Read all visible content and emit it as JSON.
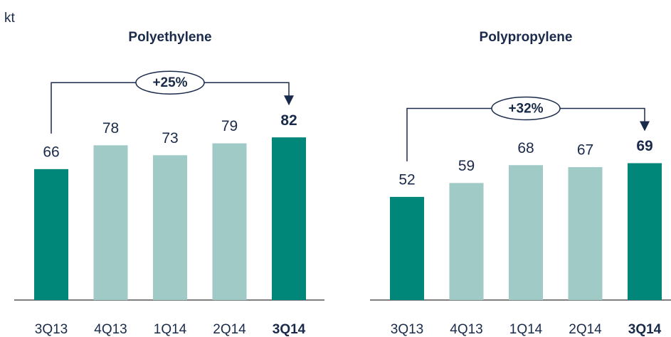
{
  "unit": "kt",
  "chart_data": [
    {
      "type": "bar",
      "title": "Polyethylene",
      "categories": [
        "3Q13",
        "4Q13",
        "1Q14",
        "2Q14",
        "3Q14"
      ],
      "values": [
        66,
        78,
        73,
        79,
        82
      ],
      "colors": [
        "#00877a",
        "#9fcac6",
        "#9fcac6",
        "#9fcac6",
        "#00877a"
      ],
      "bold_index": 4,
      "annotation": "+25%",
      "ylim": [
        0,
        100
      ]
    },
    {
      "type": "bar",
      "title": "Polypropylene",
      "categories": [
        "3Q13",
        "4Q13",
        "1Q14",
        "2Q14",
        "3Q14"
      ],
      "values": [
        52,
        59,
        68,
        67,
        69
      ],
      "colors": [
        "#00877a",
        "#9fcac6",
        "#9fcac6",
        "#9fcac6",
        "#00877a"
      ],
      "bold_index": 4,
      "annotation": "+32%",
      "ylim": [
        0,
        100
      ]
    }
  ]
}
